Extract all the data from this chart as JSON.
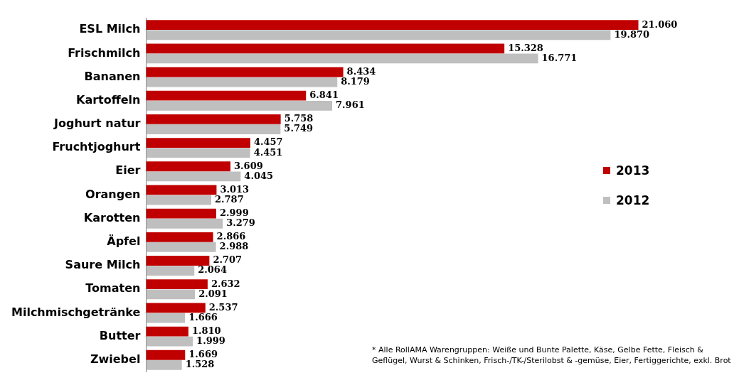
{
  "chart_data": {
    "type": "bar",
    "orientation": "horizontal",
    "categories": [
      "ESL Milch",
      "Frischmilch",
      "Bananen",
      "Kartoffeln",
      "Joghurt natur",
      "Fruchtjoghurt",
      "Eier",
      "Orangen",
      "Karotten",
      "Äpfel",
      "Saure Milch",
      "Tomaten",
      "Milchmischgetränke",
      "Butter",
      "Zwiebel"
    ],
    "series": [
      {
        "name": "2013",
        "color": "#c00000",
        "values": [
          21060,
          15328,
          8434,
          6841,
          5758,
          4457,
          3609,
          3013,
          2999,
          2866,
          2707,
          2632,
          2537,
          1810,
          1669
        ],
        "value_labels": [
          "21.060",
          "15.328",
          "8.434",
          "6.841",
          "5.758",
          "4.457",
          "3.609",
          "3.013",
          "2.999",
          "2.866",
          "2.707",
          "2.632",
          "2.537",
          "1.810",
          "1.669"
        ]
      },
      {
        "name": "2012",
        "color": "#bfbfbf",
        "values": [
          19870,
          16771,
          8179,
          7961,
          5749,
          4451,
          4045,
          2787,
          3279,
          2988,
          2064,
          2091,
          1666,
          1999,
          1528
        ],
        "value_labels": [
          "19.870",
          "16.771",
          "8.179",
          "7.961",
          "5.749",
          "4.451",
          "4.045",
          "2.787",
          "3.279",
          "2.988",
          "2.064",
          "2.091",
          "1.666",
          "1.999",
          "1.528"
        ]
      }
    ],
    "tick_labels": "y",
    "grid": false,
    "legend": "right",
    "annotations": [
      "* Alle RollAMA Warengruppen: Weiße und Bunte Palette, Käse, Gelbe Fette, Fleisch & Geflügel, Wurst & Schinken, Frisch-/TK-/Sterilobst & -gemüse,  Eier,  Fertiggerichte, exkl. Brot"
    ]
  }
}
